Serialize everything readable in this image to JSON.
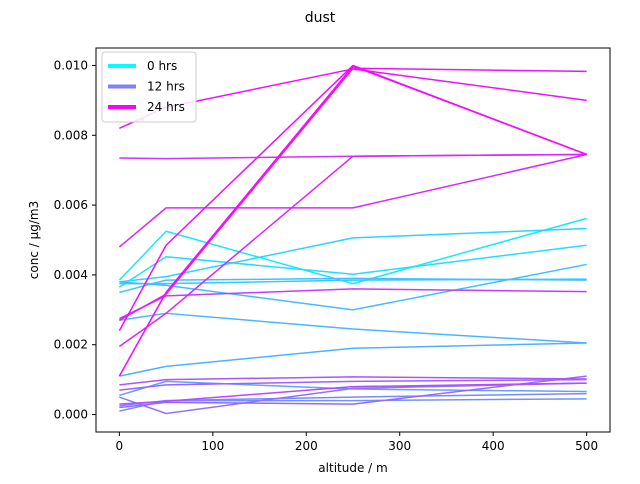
{
  "chart_data": {
    "type": "line",
    "title": "dust",
    "xlabel": "altitude / m",
    "ylabel": "conc / µg/m3",
    "xlim": [
      -25,
      525
    ],
    "ylim": [
      -0.0005,
      0.0105
    ],
    "xticks": [
      0,
      100,
      200,
      300,
      400,
      500
    ],
    "xtick_labels": [
      "0",
      "100",
      "200",
      "300",
      "400",
      "500"
    ],
    "yticks": [
      0,
      0.002,
      0.004,
      0.006,
      0.008,
      0.01
    ],
    "ytick_labels": [
      "0.000",
      "0.002",
      "0.004",
      "0.006",
      "0.008",
      "0.010"
    ],
    "grid": false,
    "legend": {
      "placement": "top-left",
      "entries": [
        {
          "name": "0 hrs",
          "color": "#00ffff"
        },
        {
          "name": "12 hrs",
          "color": "#8080ff"
        },
        {
          "name": "24 hrs",
          "color": "#ff00ff"
        }
      ]
    },
    "x": [
      0,
      50,
      250,
      500
    ],
    "series": [
      {
        "values": [
          0.00385,
          0.00525,
          0.00375,
          0.00562
        ],
        "color": "#17e8ff"
      },
      {
        "values": [
          0.00365,
          0.00452,
          0.00402,
          0.00485
        ],
        "color": "#21deff"
      },
      {
        "values": [
          0.0038,
          0.00395,
          0.00506,
          0.00533
        ],
        "color": "#2bd4ff"
      },
      {
        "values": [
          0.00375,
          0.00375,
          0.00385,
          0.00388
        ],
        "color": "#36c9ff"
      },
      {
        "values": [
          0.0035,
          0.00385,
          0.0039,
          0.00385
        ],
        "color": "#3cc3ff"
      },
      {
        "values": [
          0.0038,
          0.0037,
          0.003,
          0.0043
        ],
        "color": "#42bdff"
      },
      {
        "values": [
          0.0027,
          0.0029,
          0.00245,
          0.00205
        ],
        "color": "#48b7ff"
      },
      {
        "values": [
          0.0011,
          0.00138,
          0.0019,
          0.00205
        ],
        "color": "#4eb1ff"
      },
      {
        "values": [
          0.00055,
          0.00095,
          0.00073,
          0.00066
        ],
        "color": "#64a0ff"
      },
      {
        "values": [
          0.00025,
          0.0004,
          0.0004,
          0.00045
        ],
        "color": "#6f92ff"
      },
      {
        "values": [
          0.0001,
          0.0004,
          0.0005,
          0.0006
        ],
        "color": "#7a88ff"
      },
      {
        "values": [
          0.0005,
          3e-05,
          0.00075,
          0.0009
        ],
        "color": "#8c74ff"
      },
      {
        "values": [
          0.0002,
          0.00035,
          0.0003,
          0.0011
        ],
        "color": "#9a66ff"
      },
      {
        "values": [
          0.0007,
          0.00085,
          0.00095,
          0.001
        ],
        "color": "#a060ff"
      },
      {
        "values": [
          0.00085,
          0.001,
          0.00108,
          0.00102
        ],
        "color": "#aa55ff"
      },
      {
        "values": [
          0.0003,
          0.00038,
          0.0008,
          0.0009
        ],
        "color": "#b44bff"
      },
      {
        "values": [
          0.00275,
          0.0034,
          0.0036,
          0.00352
        ],
        "color": "#c03fff"
      },
      {
        "values": [
          0.00735,
          0.00733,
          0.0074,
          0.00745
        ],
        "color": "#cc33ff"
      },
      {
        "values": [
          0.0048,
          0.00592,
          0.00592,
          0.00745
        ],
        "color": "#d52aff"
      },
      {
        "values": [
          0.00195,
          0.0029,
          0.0074,
          0.00745
        ],
        "color": "#dc22ff"
      },
      {
        "values": [
          0.0027,
          0.00345,
          0.00992,
          0.00983
        ],
        "color": "#e617ff"
      },
      {
        "values": [
          0.0082,
          0.0088,
          0.0099,
          0.009
        ],
        "color": "#ed12ff"
      },
      {
        "values": [
          0.0024,
          0.00485,
          0.01,
          0.00745
        ],
        "color": "#f30cff"
      },
      {
        "values": [
          0.0011,
          0.0035,
          0.00998,
          0.00745
        ],
        "color": "#fa05ff"
      }
    ]
  }
}
